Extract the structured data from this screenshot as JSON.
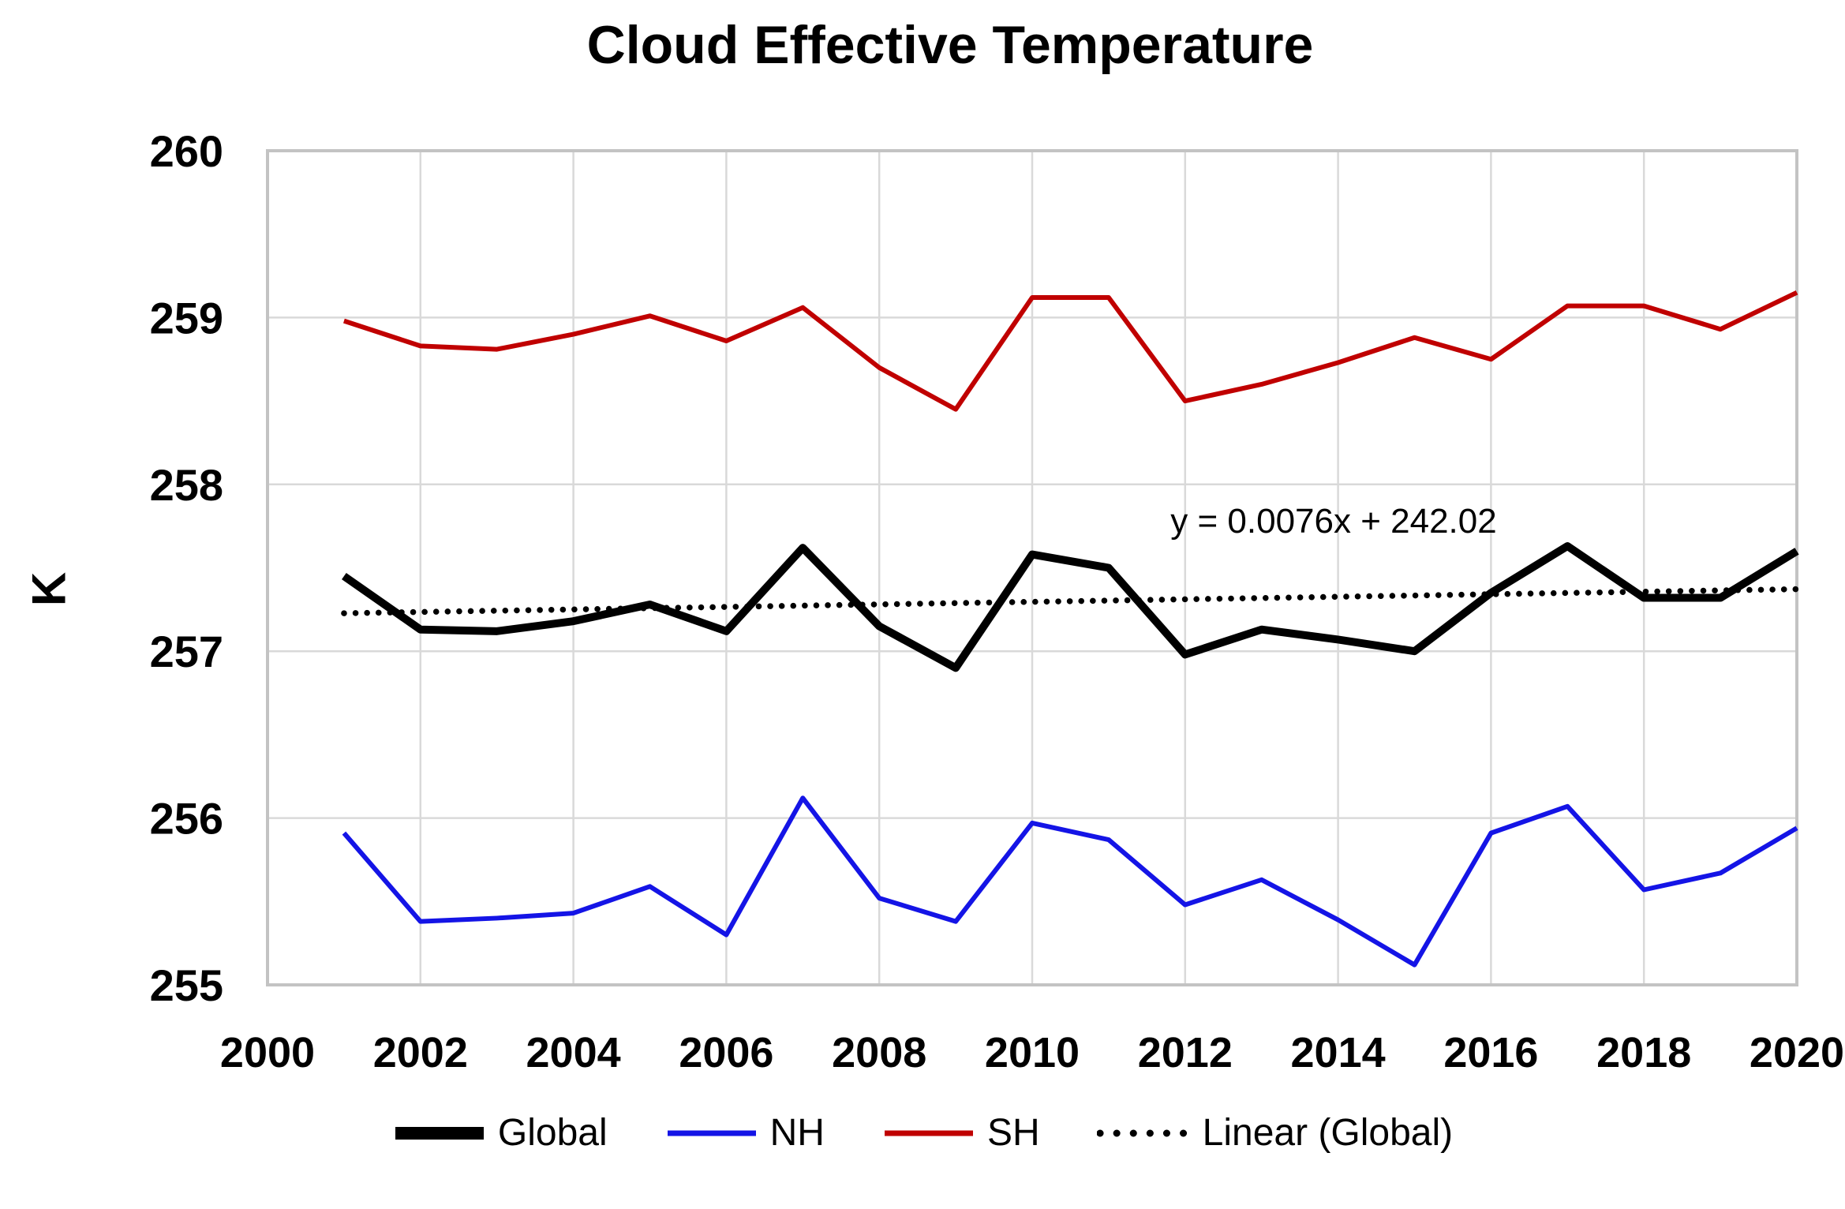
{
  "title": "Cloud Effective Temperature",
  "y_axis": {
    "label": "K",
    "min": 255,
    "max": 260,
    "ticks": [
      260,
      259,
      258,
      257,
      256,
      255
    ]
  },
  "x_axis": {
    "min": 2000,
    "max": 2020,
    "ticks": [
      2000,
      2002,
      2004,
      2006,
      2008,
      2010,
      2012,
      2014,
      2016,
      2018,
      2020
    ]
  },
  "annotation": {
    "trend_equation": "y = 0.0076x + 242.02"
  },
  "colors": {
    "global": "#000000",
    "nh": "#1414e6",
    "sh": "#c00000",
    "trend": "#000000",
    "gridline": "#d9d9d9",
    "plot_border": "#c3c3c3",
    "text": "#000000",
    "background": "#ffffff"
  },
  "legend": [
    {
      "label": "Global",
      "color": "#000000",
      "style": "solid",
      "weight": "thick"
    },
    {
      "label": "NH",
      "color": "#1414e6",
      "style": "solid",
      "weight": "normal"
    },
    {
      "label": "SH",
      "color": "#c00000",
      "style": "solid",
      "weight": "normal"
    },
    {
      "label": "Linear (Global)",
      "color": "#000000",
      "style": "dotted",
      "weight": "normal"
    }
  ],
  "chart_data": {
    "type": "line",
    "title": "Cloud Effective Temperature",
    "xlabel": "",
    "ylabel": "K",
    "xlim": [
      2000,
      2020
    ],
    "ylim": [
      255,
      260
    ],
    "grid": true,
    "legend_position": "bottom",
    "x": [
      2001,
      2002,
      2003,
      2004,
      2005,
      2006,
      2007,
      2008,
      2009,
      2010,
      2011,
      2012,
      2013,
      2014,
      2015,
      2016,
      2017,
      2018,
      2019,
      2020
    ],
    "series": [
      {
        "name": "Global",
        "color": "#000000",
        "width": 10,
        "values": [
          257.45,
          257.13,
          257.12,
          257.18,
          257.28,
          257.12,
          257.62,
          257.15,
          256.9,
          257.58,
          257.5,
          256.98,
          257.13,
          257.07,
          257.0,
          257.35,
          257.63,
          257.32,
          257.32,
          257.6
        ]
      },
      {
        "name": "NH",
        "color": "#1414e6",
        "width": 6,
        "values": [
          255.91,
          255.38,
          255.4,
          255.43,
          255.59,
          255.3,
          256.12,
          255.52,
          255.38,
          255.97,
          255.87,
          255.48,
          255.63,
          255.39,
          255.12,
          255.91,
          256.07,
          255.57,
          255.67,
          255.94
        ]
      },
      {
        "name": "SH",
        "color": "#c00000",
        "width": 6,
        "values": [
          258.98,
          258.83,
          258.81,
          258.9,
          259.01,
          258.86,
          259.06,
          258.7,
          258.45,
          259.12,
          259.12,
          258.5,
          258.6,
          258.73,
          258.88,
          258.75,
          259.07,
          259.07,
          258.93,
          259.15
        ]
      }
    ],
    "trend": {
      "name": "Linear (Global)",
      "slope": 0.0076,
      "intercept": 242.02,
      "x_start": 2001,
      "x_end": 2020,
      "equation": "y = 0.0076x + 242.02"
    }
  }
}
